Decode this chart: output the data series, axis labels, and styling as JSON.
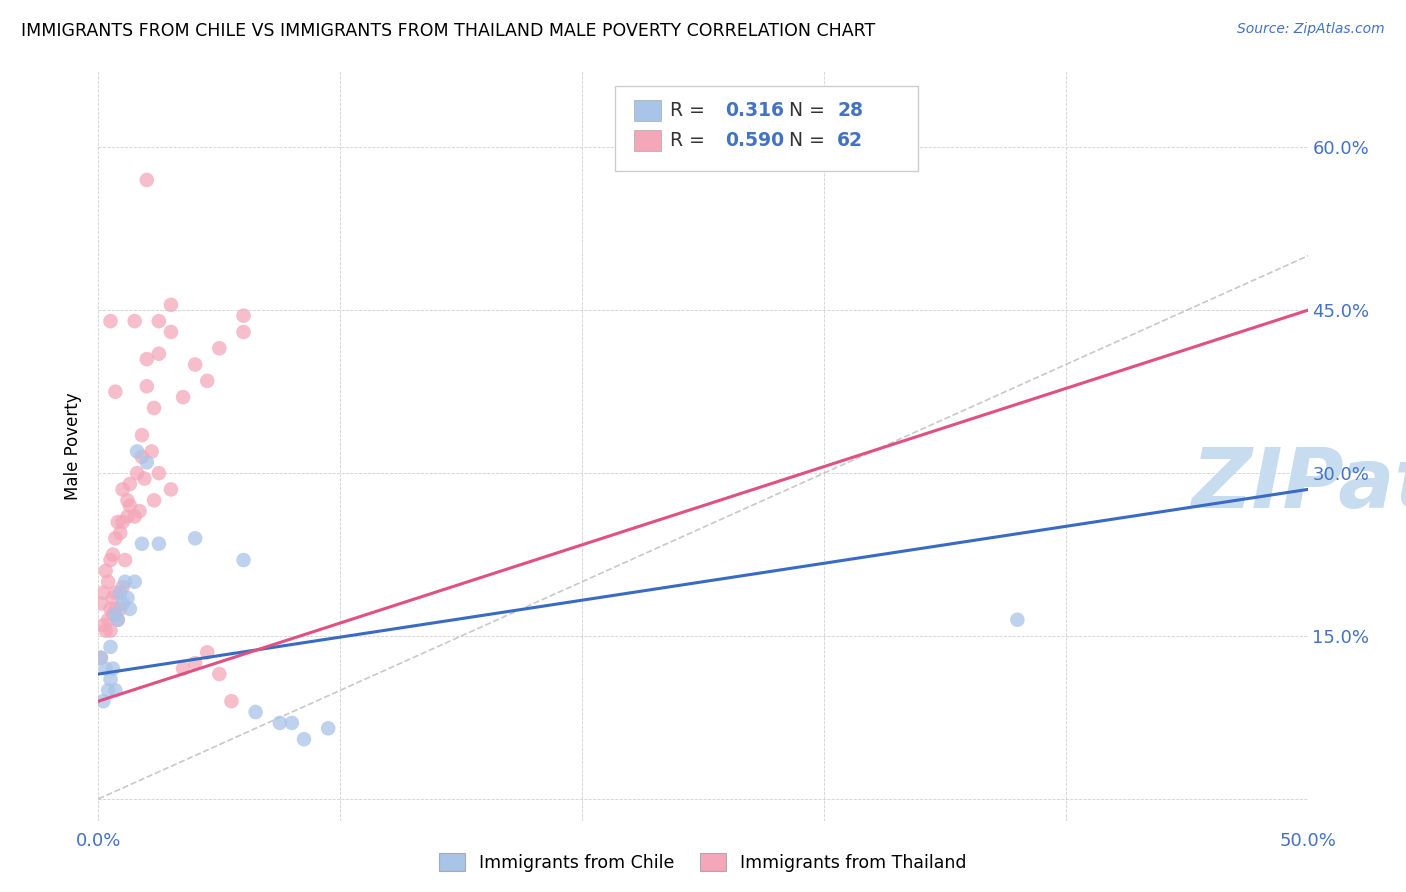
{
  "title": "IMMIGRANTS FROM CHILE VS IMMIGRANTS FROM THAILAND MALE POVERTY CORRELATION CHART",
  "source": "Source: ZipAtlas.com",
  "ylabel": "Male Poverty",
  "xlim": [
    0.0,
    0.5
  ],
  "ylim": [
    -0.02,
    0.67
  ],
  "ytick_positions": [
    0.0,
    0.15,
    0.3,
    0.45,
    0.6
  ],
  "yticklabels_right": [
    "",
    "15.0%",
    "30.0%",
    "45.0%",
    "60.0%"
  ],
  "xtick_positions": [
    0.0,
    0.1,
    0.2,
    0.3,
    0.4,
    0.5
  ],
  "xticklabels": [
    "0.0%",
    "",
    "",
    "",
    "",
    "50.0%"
  ],
  "chile_color": "#A8C4E8",
  "thailand_color": "#F4A7B9",
  "chile_line_color": "#3A6BC4",
  "thailand_line_color": "#E05080",
  "diagonal_color": "#BBBBBB",
  "watermark_text": "ZIPatlas",
  "watermark_color": "#C8DCF0",
  "chile_line": {
    "x0": 0.0,
    "y0": 0.115,
    "x1": 0.5,
    "y1": 0.285
  },
  "thailand_line": {
    "x0": 0.0,
    "y0": 0.09,
    "x1": 0.5,
    "y1": 0.45
  },
  "chile_points": [
    [
      0.001,
      0.13
    ],
    [
      0.002,
      0.09
    ],
    [
      0.003,
      0.12
    ],
    [
      0.004,
      0.1
    ],
    [
      0.005,
      0.11
    ],
    [
      0.005,
      0.14
    ],
    [
      0.006,
      0.12
    ],
    [
      0.007,
      0.1
    ],
    [
      0.007,
      0.17
    ],
    [
      0.008,
      0.165
    ],
    [
      0.009,
      0.19
    ],
    [
      0.01,
      0.18
    ],
    [
      0.011,
      0.2
    ],
    [
      0.012,
      0.185
    ],
    [
      0.013,
      0.175
    ],
    [
      0.015,
      0.2
    ],
    [
      0.016,
      0.32
    ],
    [
      0.018,
      0.235
    ],
    [
      0.02,
      0.31
    ],
    [
      0.025,
      0.235
    ],
    [
      0.04,
      0.24
    ],
    [
      0.06,
      0.22
    ],
    [
      0.065,
      0.08
    ],
    [
      0.075,
      0.07
    ],
    [
      0.08,
      0.07
    ],
    [
      0.085,
      0.055
    ],
    [
      0.095,
      0.065
    ],
    [
      0.38,
      0.165
    ]
  ],
  "thailand_points": [
    [
      0.001,
      0.13
    ],
    [
      0.001,
      0.18
    ],
    [
      0.002,
      0.16
    ],
    [
      0.002,
      0.19
    ],
    [
      0.003,
      0.155
    ],
    [
      0.003,
      0.21
    ],
    [
      0.004,
      0.165
    ],
    [
      0.004,
      0.2
    ],
    [
      0.005,
      0.155
    ],
    [
      0.005,
      0.175
    ],
    [
      0.005,
      0.22
    ],
    [
      0.006,
      0.17
    ],
    [
      0.006,
      0.185
    ],
    [
      0.006,
      0.225
    ],
    [
      0.007,
      0.175
    ],
    [
      0.007,
      0.19
    ],
    [
      0.007,
      0.24
    ],
    [
      0.008,
      0.165
    ],
    [
      0.008,
      0.255
    ],
    [
      0.009,
      0.175
    ],
    [
      0.009,
      0.245
    ],
    [
      0.01,
      0.195
    ],
    [
      0.01,
      0.255
    ],
    [
      0.011,
      0.22
    ],
    [
      0.012,
      0.26
    ],
    [
      0.013,
      0.27
    ],
    [
      0.013,
      0.29
    ],
    [
      0.015,
      0.26
    ],
    [
      0.016,
      0.3
    ],
    [
      0.017,
      0.265
    ],
    [
      0.018,
      0.315
    ],
    [
      0.019,
      0.295
    ],
    [
      0.02,
      0.38
    ],
    [
      0.02,
      0.57
    ],
    [
      0.022,
      0.32
    ],
    [
      0.023,
      0.36
    ],
    [
      0.025,
      0.41
    ],
    [
      0.025,
      0.44
    ],
    [
      0.03,
      0.43
    ],
    [
      0.03,
      0.455
    ],
    [
      0.035,
      0.37
    ],
    [
      0.04,
      0.4
    ],
    [
      0.045,
      0.385
    ],
    [
      0.05,
      0.415
    ],
    [
      0.06,
      0.43
    ],
    [
      0.06,
      0.445
    ],
    [
      0.005,
      0.44
    ],
    [
      0.007,
      0.375
    ],
    [
      0.01,
      0.285
    ],
    [
      0.012,
      0.275
    ],
    [
      0.015,
      0.44
    ],
    [
      0.018,
      0.335
    ],
    [
      0.02,
      0.405
    ],
    [
      0.023,
      0.275
    ],
    [
      0.025,
      0.3
    ],
    [
      0.03,
      0.285
    ],
    [
      0.035,
      0.12
    ],
    [
      0.04,
      0.125
    ],
    [
      0.045,
      0.135
    ],
    [
      0.05,
      0.115
    ],
    [
      0.055,
      0.09
    ]
  ]
}
